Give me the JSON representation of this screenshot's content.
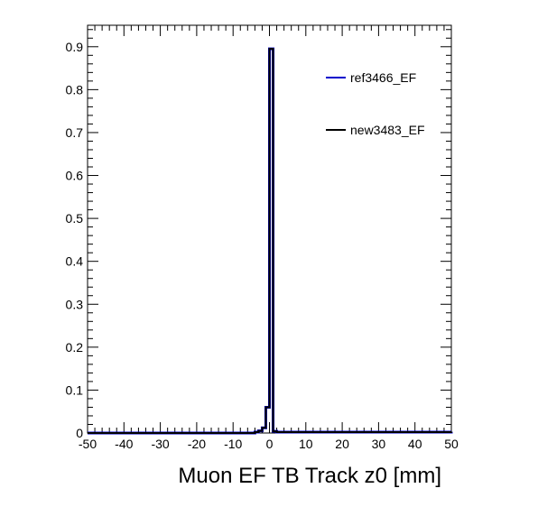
{
  "chart_data": {
    "type": "line",
    "title": "",
    "xlabel": "Muon EF TB Track z0 [mm]",
    "ylabel": "",
    "xlim": [
      -50,
      50
    ],
    "ylim": [
      0,
      0.95
    ],
    "grid": false,
    "legend_position": "top-right",
    "x_ticks": [
      "-50",
      "-40",
      "-30",
      "-20",
      "-10",
      "0",
      "10",
      "20",
      "30",
      "40",
      "50"
    ],
    "y_ticks": [
      "0",
      "0.1",
      "0.2",
      "0.3",
      "0.4",
      "0.5",
      "0.6",
      "0.7",
      "0.8",
      "0.9"
    ],
    "series": [
      {
        "name": "ref3466_EF",
        "color": "#0000cc",
        "x": [
          -50,
          -4,
          -3,
          -2,
          -1,
          0,
          1,
          2,
          50
        ],
        "y": [
          0,
          0.002,
          0.005,
          0.012,
          0.06,
          0.895,
          0.004,
          0.002,
          0.003
        ]
      },
      {
        "name": "new3483_EF",
        "color": "#000000",
        "x": [
          -50,
          -4,
          -3,
          -2,
          -1,
          0,
          1,
          2,
          50
        ],
        "y": [
          0,
          0.002,
          0.005,
          0.012,
          0.06,
          0.895,
          0.004,
          0.002,
          0.003
        ]
      }
    ]
  }
}
